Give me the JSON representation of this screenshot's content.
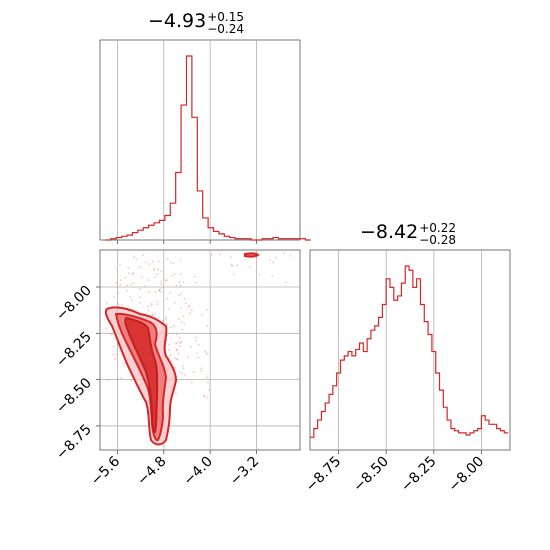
{
  "colors": {
    "accent": "#d62728",
    "grid": "#b0b0b0",
    "axes": "#555555"
  },
  "titles": {
    "p1": {
      "main": "−4.93",
      "plus": "+0.15",
      "minus": "−0.24"
    },
    "p2": {
      "main": "−8.42",
      "plus": "+0.22",
      "minus": "−0.28"
    }
  },
  "chart_data": [
    {
      "type": "histogram",
      "panel": "marginal-p1",
      "xlim": [
        -6.0,
        -2.3
      ],
      "bin_edges_start": -5.9,
      "bin_width": 0.1,
      "counts": [
        0,
        1,
        2,
        3,
        4,
        6,
        8,
        10,
        12,
        14,
        16,
        20,
        30,
        55,
        110,
        150,
        100,
        40,
        18,
        10,
        7,
        5,
        3,
        2,
        1,
        1,
        1,
        0,
        0,
        1,
        1,
        2,
        1,
        1,
        1,
        1,
        1,
        0
      ]
    },
    {
      "type": "histogram",
      "panel": "marginal-p2",
      "xlim": [
        -8.9,
        -7.85
      ],
      "bin_edges_start": -8.9,
      "bin_width": 0.02,
      "counts": [
        6,
        10,
        14,
        18,
        22,
        26,
        30,
        36,
        42,
        44,
        46,
        44,
        47,
        50,
        46,
        52,
        56,
        58,
        62,
        68,
        80,
        76,
        70,
        72,
        78,
        86,
        84,
        76,
        80,
        68,
        60,
        54,
        46,
        36,
        28,
        20,
        14,
        10,
        9,
        8,
        8,
        7,
        8,
        9,
        10,
        16,
        14,
        12,
        12,
        10,
        9,
        8
      ]
    },
    {
      "type": "contour",
      "panel": "joint",
      "xlabel": "",
      "ylabel": "",
      "xlim": [
        -5.9,
        -2.45
      ],
      "ylim": [
        -8.88,
        -7.8
      ],
      "xticks": [
        -5.6,
        -4.8,
        -4.0,
        -3.2
      ],
      "xtick_labels": [
        "−5.6",
        "−4.8",
        "−4.0",
        "−3.2"
      ],
      "yticks": [
        -8.0,
        -8.25,
        -8.5,
        -8.75
      ],
      "ytick_labels": [
        "−8.00",
        "−8.25",
        "−8.50",
        "−8.75"
      ]
    },
    {
      "type": "axis",
      "panel": "marginal-p2",
      "xticks": [
        -8.75,
        -8.5,
        -8.25,
        -8.0
      ],
      "xtick_labels": [
        "−8.75",
        "−8.50",
        "−8.25",
        "−8.00"
      ]
    }
  ]
}
